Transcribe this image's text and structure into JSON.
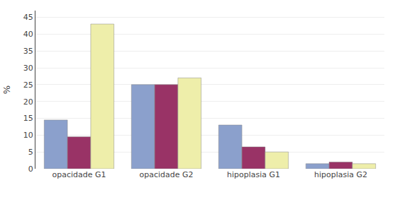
{
  "chart_data": {
    "type": "bar",
    "categories": [
      "opacidade G1",
      "opacidade G2",
      "hipoplasia G1",
      "hipoplasia G2"
    ],
    "series": [
      {
        "color": "#8BA0CC",
        "values": [
          14.5,
          25.0,
          13.0,
          1.5
        ]
      },
      {
        "color": "#993366",
        "values": [
          9.5,
          25.0,
          6.5,
          2.0
        ]
      },
      {
        "color": "#EEEEAA",
        "values": [
          43.0,
          27.0,
          5.0,
          1.5
        ]
      }
    ],
    "ylabel": "%",
    "ylim": [
      0,
      47
    ],
    "yticks": [
      0,
      5,
      10,
      15,
      20,
      25,
      30,
      35,
      40,
      45
    ],
    "grid": true
  }
}
